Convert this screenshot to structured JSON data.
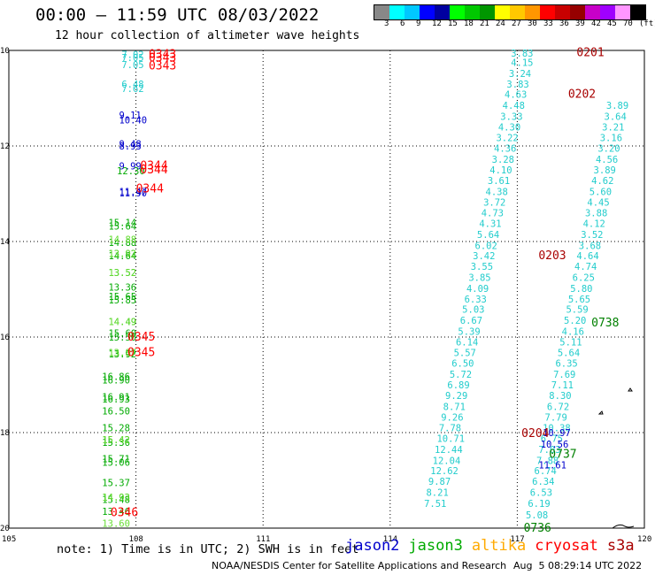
{
  "header": {
    "title": "00:00 – 11:59 UTC 08/03/2022",
    "subtitle": "12 hour collection of altimeter wave heights"
  },
  "colorbar": {
    "colors": [
      "#888888",
      "#00ffff",
      "#00c8ff",
      "#0000ff",
      "#0000a0",
      "#00ff00",
      "#00c800",
      "#009600",
      "#ffff00",
      "#ffc800",
      "#ff9600",
      "#ff0000",
      "#c80000",
      "#960000",
      "#c800c8",
      "#a000ff",
      "#ff96ff",
      "#000000"
    ],
    "labels": [
      "3",
      "6",
      "9",
      "12",
      "15",
      "18",
      "21",
      "24",
      "27",
      "30",
      "33",
      "36",
      "39",
      "42",
      "45",
      "70",
      "(ft)"
    ]
  },
  "axes": {
    "lon_labels": [
      "105",
      "108",
      "111",
      "114",
      "117",
      "120"
    ],
    "lat_labels": [
      "10",
      "12",
      "14",
      "16",
      "18",
      "20"
    ]
  },
  "satellite_colors": {
    "jason2": "#0000cc",
    "jason3": "#00aa00",
    "altika": "#66dd33",
    "cryosat": "#ff0000",
    "s3a": "#a80000",
    "s3b": "#22cccc",
    "s3a_green": "#008000"
  },
  "tracks": [
    {
      "sat": "s3b",
      "pts": [
        [
          107.66,
          10.08,
          "7.02"
        ],
        [
          107.66,
          10.15,
          "7.05"
        ],
        [
          107.66,
          10.3,
          "7.05"
        ],
        [
          107.66,
          10.7,
          "6.48"
        ],
        [
          107.66,
          10.8,
          "7.62"
        ]
      ]
    },
    {
      "sat": "jason2",
      "pts": [
        [
          107.6,
          11.35,
          "9.11"
        ],
        [
          107.6,
          11.45,
          "10.40"
        ],
        [
          107.6,
          11.95,
          "9.48"
        ],
        [
          107.6,
          12.0,
          "8.93"
        ],
        [
          107.6,
          12.42,
          "9.99"
        ],
        [
          107.6,
          12.95,
          "11.47"
        ],
        [
          107.6,
          12.98,
          "11.90"
        ]
      ]
    },
    {
      "sat": "jason3",
      "pts": [
        [
          107.55,
          12.52,
          "12.30"
        ],
        [
          107.35,
          13.6,
          "15.14"
        ],
        [
          107.35,
          13.68,
          "15.64"
        ],
        [
          107.35,
          14.02,
          "14.88"
        ],
        [
          107.35,
          14.25,
          "13.92"
        ],
        [
          107.35,
          14.3,
          "14.64"
        ],
        [
          107.35,
          14.65,
          "13.52"
        ],
        [
          107.35,
          14.95,
          "13.36"
        ],
        [
          107.35,
          15.15,
          "15.65"
        ],
        [
          107.35,
          15.22,
          "15.85"
        ],
        [
          107.35,
          15.68,
          "14.49"
        ],
        [
          107.35,
          15.92,
          "15.60"
        ],
        [
          107.35,
          16.0,
          "15.50"
        ],
        [
          107.35,
          16.32,
          "13.87"
        ],
        [
          107.35,
          16.35,
          "13.92"
        ]
      ]
    },
    {
      "sat": "altika",
      "pts": [
        [
          107.35,
          13.95,
          "14.88"
        ],
        [
          107.35,
          14.25,
          "13.92"
        ],
        [
          107.35,
          14.65,
          "13.52"
        ],
        [
          107.35,
          15.68,
          "14.49"
        ],
        [
          107.35,
          16.32,
          "13.87"
        ]
      ]
    },
    {
      "sat": "jason3",
      "pts": [
        [
          107.2,
          16.82,
          "16.86"
        ],
        [
          107.2,
          16.9,
          "16.90"
        ],
        [
          107.2,
          17.25,
          "16.91"
        ],
        [
          107.2,
          17.3,
          "16.93"
        ],
        [
          107.2,
          17.55,
          "16.50"
        ],
        [
          107.2,
          17.9,
          "15.28"
        ],
        [
          107.2,
          18.15,
          "15.42"
        ],
        [
          107.2,
          18.2,
          "15.36"
        ],
        [
          107.2,
          18.55,
          "15.71"
        ],
        [
          107.2,
          18.62,
          "15.06"
        ],
        [
          107.2,
          19.05,
          "15.37"
        ],
        [
          107.2,
          19.35,
          "14.93"
        ],
        [
          107.2,
          19.4,
          "15.48"
        ],
        [
          107.2,
          19.65,
          "13.46"
        ]
      ]
    },
    {
      "sat": "altika",
      "pts": [
        [
          107.2,
          18.15,
          "15.42"
        ],
        [
          107.2,
          19.35,
          "14.93"
        ],
        [
          107.2,
          19.9,
          "13.60"
        ]
      ]
    },
    {
      "sat": "cryosat",
      "pts": [
        [
          108.3,
          10.08,
          "0343"
        ],
        [
          108.3,
          10.16,
          "0343"
        ],
        [
          108.3,
          10.32,
          "0343"
        ],
        [
          108.1,
          12.42,
          "0344"
        ],
        [
          108.1,
          12.5,
          "0344"
        ],
        [
          108.0,
          12.9,
          "0344"
        ],
        [
          107.8,
          16.0,
          "0345"
        ],
        [
          107.8,
          16.32,
          "0345"
        ],
        [
          107.4,
          19.68,
          "0346"
        ]
      ]
    },
    {
      "sat": "s3b",
      "pts": [
        [
          116.85,
          10.06,
          "3.83"
        ],
        [
          116.85,
          10.25,
          "4.15"
        ],
        [
          116.8,
          10.48,
          "3.24"
        ],
        [
          116.75,
          10.7,
          "3.83"
        ],
        [
          116.7,
          10.92,
          "4.63"
        ],
        [
          116.65,
          11.15,
          "4.48"
        ],
        [
          116.6,
          11.38,
          "3.33"
        ],
        [
          116.55,
          11.6,
          "4.30"
        ],
        [
          116.5,
          11.82,
          "3.22"
        ],
        [
          116.45,
          12.05,
          "4.36"
        ],
        [
          116.4,
          12.28,
          "3.28"
        ],
        [
          116.35,
          12.5,
          "4.10"
        ],
        [
          116.3,
          12.72,
          "3.61"
        ],
        [
          116.25,
          12.95,
          "4.38"
        ],
        [
          116.2,
          13.18,
          "3.72"
        ],
        [
          116.15,
          13.4,
          "4.73"
        ],
        [
          116.1,
          13.62,
          "4.31"
        ],
        [
          116.05,
          13.85,
          "5.64"
        ],
        [
          116.0,
          14.08,
          "6.02"
        ],
        [
          115.95,
          14.3,
          "3.42"
        ],
        [
          115.9,
          14.52,
          "3.55"
        ],
        [
          115.85,
          14.75,
          "3.85"
        ],
        [
          115.8,
          14.98,
          "4.09"
        ],
        [
          115.75,
          15.2,
          "6.33"
        ],
        [
          115.7,
          15.42,
          "5.03"
        ],
        [
          115.65,
          15.65,
          "6.67"
        ],
        [
          115.6,
          15.88,
          "5.39"
        ],
        [
          115.55,
          16.1,
          "6.14"
        ],
        [
          115.5,
          16.32,
          "5.57"
        ],
        [
          115.45,
          16.55,
          "6.50"
        ],
        [
          115.4,
          16.78,
          "5.72"
        ],
        [
          115.35,
          17.0,
          "6.89"
        ],
        [
          115.3,
          17.22,
          "9.29"
        ],
        [
          115.25,
          17.45,
          "8.71"
        ],
        [
          115.2,
          17.68,
          "9.26"
        ],
        [
          115.15,
          17.9,
          "7.78"
        ],
        [
          115.1,
          18.12,
          "10.71"
        ],
        [
          115.05,
          18.35,
          "12.44"
        ],
        [
          115.0,
          18.58,
          "12.04"
        ],
        [
          114.95,
          18.8,
          "12.62"
        ],
        [
          114.9,
          19.02,
          "9.87"
        ],
        [
          114.85,
          19.25,
          "8.21"
        ],
        [
          114.8,
          19.48,
          "7.51"
        ]
      ]
    },
    {
      "sat": "s3b",
      "pts": [
        [
          117.2,
          19.72,
          "5.08"
        ],
        [
          117.25,
          19.48,
          "6.19"
        ],
        [
          117.3,
          19.25,
          "6.53"
        ],
        [
          117.35,
          19.02,
          "6.34"
        ],
        [
          117.4,
          18.8,
          "6.74"
        ],
        [
          117.45,
          18.58,
          "7.88"
        ],
        [
          117.5,
          18.35,
          "7.03"
        ],
        [
          117.55,
          18.12,
          "6.75"
        ],
        [
          117.6,
          17.9,
          "10.38"
        ],
        [
          117.65,
          17.68,
          "7.79"
        ],
        [
          117.7,
          17.45,
          "6.72"
        ],
        [
          117.75,
          17.22,
          "8.30"
        ],
        [
          117.8,
          17.0,
          "7.11"
        ],
        [
          117.85,
          16.78,
          "7.69"
        ],
        [
          117.9,
          16.55,
          "6.35"
        ],
        [
          117.95,
          16.32,
          "5.64"
        ],
        [
          118.0,
          16.1,
          "5.11"
        ],
        [
          118.05,
          15.88,
          "4.16"
        ],
        [
          118.1,
          15.65,
          "5.20"
        ],
        [
          118.15,
          15.42,
          "5.59"
        ],
        [
          118.2,
          15.2,
          "5.65"
        ],
        [
          118.25,
          14.98,
          "5.80"
        ],
        [
          118.3,
          14.75,
          "6.25"
        ],
        [
          118.35,
          14.52,
          "4.74"
        ],
        [
          118.4,
          14.3,
          "4.64"
        ],
        [
          118.45,
          14.08,
          "3.68"
        ],
        [
          118.5,
          13.85,
          "3.52"
        ],
        [
          118.55,
          13.62,
          "4.12"
        ],
        [
          118.6,
          13.4,
          "3.88"
        ],
        [
          118.65,
          13.18,
          "4.45"
        ],
        [
          118.7,
          12.95,
          "5.60"
        ],
        [
          118.75,
          12.72,
          "4.62"
        ],
        [
          118.8,
          12.5,
          "3.89"
        ],
        [
          118.85,
          12.28,
          "4.56"
        ],
        [
          118.9,
          12.05,
          "3.20"
        ],
        [
          118.95,
          11.82,
          "3.16"
        ],
        [
          119.0,
          11.6,
          "3.21"
        ],
        [
          119.05,
          11.38,
          "3.64"
        ],
        [
          119.1,
          11.15,
          "3.89"
        ]
      ]
    },
    {
      "sat": "jason2",
      "pts": [
        [
          117.6,
          18.0,
          "10.97"
        ],
        [
          117.55,
          18.24,
          "10.56"
        ],
        [
          117.5,
          18.68,
          "11.61"
        ]
      ]
    },
    {
      "sat": "s3a",
      "pts": [
        [
          118.4,
          10.05,
          "0201"
        ],
        [
          118.2,
          10.92,
          "0202"
        ],
        [
          117.5,
          14.3,
          "0203"
        ],
        [
          117.1,
          18.02,
          "0204"
        ]
      ]
    },
    {
      "sat": "s3a_green",
      "pts": [
        [
          118.75,
          15.7,
          "0738"
        ],
        [
          117.75,
          18.45,
          "0737"
        ],
        [
          117.15,
          20.0,
          "0736"
        ]
      ]
    }
  ],
  "note": "note: 1) Time is in UTC; 2) SWH is in feet",
  "legend": [
    "jason2",
    "jason3",
    "altika",
    "cryosat",
    "s3a"
  ],
  "credit": "NOAA/NESDIS Center for Satellite Applications and Research",
  "generated": "Aug  5 08:29:14 UTC 2022"
}
